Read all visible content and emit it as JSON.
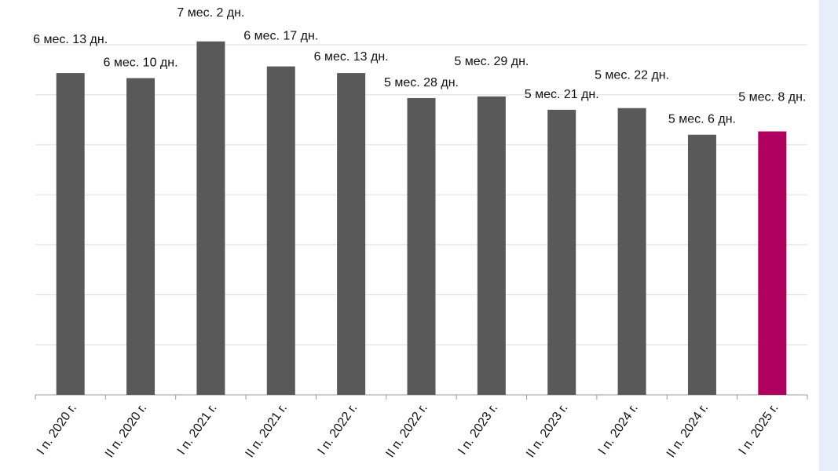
{
  "chart_data": {
    "type": "bar",
    "categories": [
      "I п. 2020 г.",
      "II п. 2020 г.",
      "I п. 2021 г.",
      "II п. 2021 г.",
      "I п. 2022 г.",
      "II п. 2022 г.",
      "I п. 2023 г.",
      "II п. 2023 г.",
      "I п. 2024 г.",
      "II п. 2024 г.",
      "I п. 2025 г."
    ],
    "values": [
      193,
      190,
      212,
      197,
      193,
      178,
      179,
      171,
      172,
      156,
      158
    ],
    "value_labels": [
      "6 мес. 13 дн.",
      "6 мес. 10 дн.",
      "7 мес. 2 дн.",
      "6 мес. 17 дн.",
      "6 мес. 13 дн.",
      "5 мес. 28 дн.",
      "5 мес. 29 дн.",
      "5 мес. 21 дн.",
      "5 мес. 22 дн.",
      "5 мес. 6 дн.",
      "5 мес. 8 дн."
    ],
    "colors": [
      "#595959",
      "#595959",
      "#595959",
      "#595959",
      "#595959",
      "#595959",
      "#595959",
      "#595959",
      "#595959",
      "#595959",
      "#b0005f"
    ],
    "ylim": [
      0,
      210
    ],
    "yticks": [
      0,
      30,
      60,
      90,
      120,
      150,
      180,
      210
    ],
    "grid": true
  }
}
